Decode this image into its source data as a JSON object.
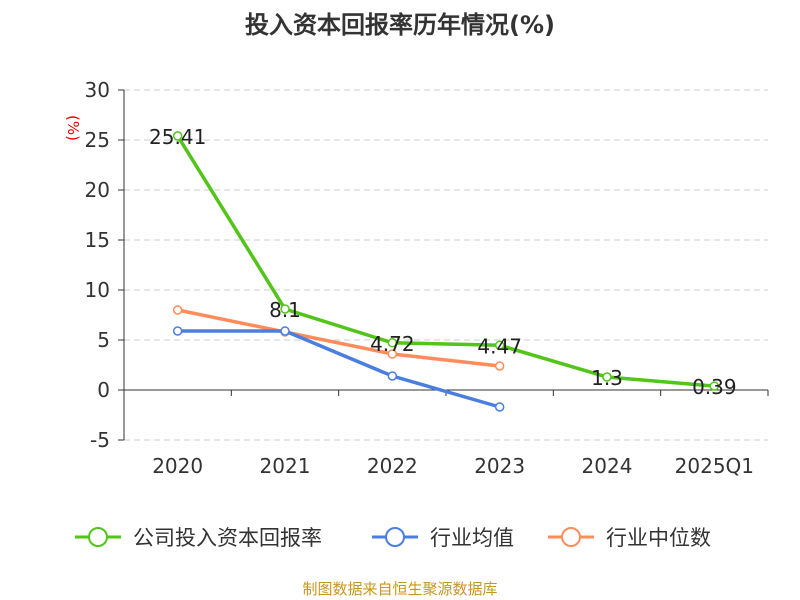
{
  "chart_data": {
    "type": "line",
    "title": "投入资本回报率历年情况(%)",
    "ylabel": "(%)",
    "xlabel": "",
    "categories": [
      "2020",
      "2021",
      "2022",
      "2023",
      "2024",
      "2025Q1"
    ],
    "ylim": [
      -5,
      30
    ],
    "yticks": [
      -5,
      0,
      5,
      10,
      15,
      20,
      25,
      30
    ],
    "grid": true,
    "legend_position": "bottom",
    "series": [
      {
        "name": "公司投入资本回报率",
        "color": "#52c41a",
        "values": [
          25.41,
          8.1,
          4.72,
          4.47,
          1.3,
          0.39
        ],
        "labels": [
          "25.41",
          "8.1",
          "4.72",
          "4.47",
          "1.3",
          "0.39"
        ]
      },
      {
        "name": "行业均值",
        "color": "#4a7ee0",
        "values": [
          5.9,
          5.9,
          1.4,
          -1.7,
          null,
          null
        ]
      },
      {
        "name": "行业中位数",
        "color": "#ff8c5a",
        "values": [
          8.0,
          5.8,
          3.6,
          2.4,
          null,
          null
        ]
      }
    ],
    "source": "制图数据来自恒生聚源数据库"
  }
}
